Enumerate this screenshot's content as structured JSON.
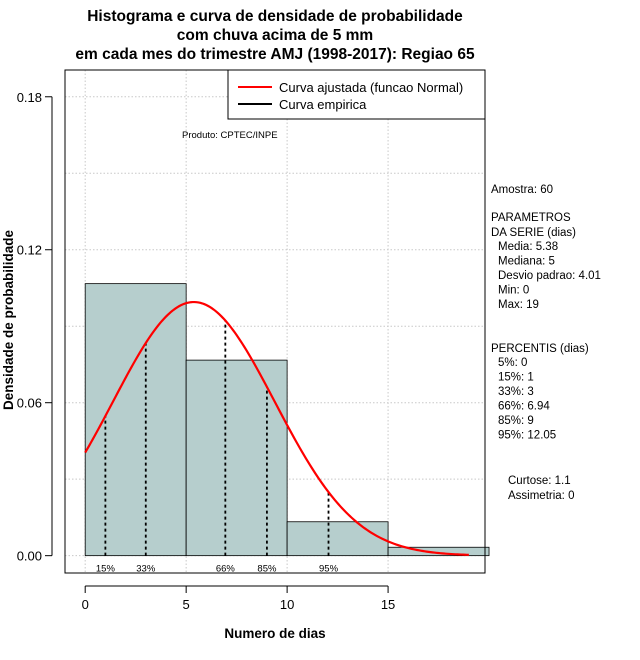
{
  "chart_data": {
    "type": "bar",
    "title": [
      "Histograma e curva de densidade de probabilidade",
      "com chuva acima de 5 mm",
      "em cada mes do trimestre AMJ (1998-2017): Regiao 65"
    ],
    "xlabel": "Numero de dias",
    "ylabel": "Densidade de probabilidade",
    "xlim": [
      -1,
      19.8
    ],
    "ylim": [
      -0.0068,
      0.1905
    ],
    "xticks": [
      "0",
      "5",
      "10",
      "15"
    ],
    "xtick_values": [
      0,
      5,
      10,
      15
    ],
    "yticks": [
      "0.00",
      "0.06",
      "0.12",
      "0.18"
    ],
    "ytick_values": [
      0.0,
      0.06,
      0.12,
      0.18
    ],
    "grid": true,
    "bins": [
      {
        "start": 0,
        "end": 5,
        "density": 0.1067
      },
      {
        "start": 5,
        "end": 10,
        "density": 0.0767
      },
      {
        "start": 10,
        "end": 15,
        "density": 0.0133
      },
      {
        "start": 15,
        "end": 20,
        "density": 0.0033
      }
    ],
    "normal_fit": {
      "mean": 5.38,
      "sd": 4.01,
      "x_range": [
        0,
        19
      ]
    },
    "percentiles": [
      {
        "label": "15%",
        "x": 1
      },
      {
        "label": "33%",
        "x": 3
      },
      {
        "label": "66%",
        "x": 6.94
      },
      {
        "label": "85%",
        "x": 9
      },
      {
        "label": "95%",
        "x": 12.05
      }
    ],
    "legend": {
      "position": "top-right",
      "entries": [
        {
          "label": "Curva ajustada (funcao Normal)",
          "color": "#ff0000"
        },
        {
          "label": "Curva empirica",
          "color": "#000000"
        }
      ]
    },
    "product_label": "Produto: CPTEC/INPE",
    "stats": {
      "amostra": "Amostra: 60",
      "param_header": [
        " PARAMETROS",
        "DA SERIE (dias)"
      ],
      "params": [
        "Media: 5.38",
        "Mediana: 5",
        "Desvio padrao: 4.01",
        "Min: 0",
        "Max: 19"
      ],
      "percentis_header": "PERCENTIS (dias)",
      "percentis": [
        "5%: 0",
        "15%: 1",
        "33%: 3",
        "66%: 6.94",
        "85%: 9",
        "95%: 12.05"
      ],
      "shape": [
        "Curtose: 1.1",
        "Assimetria: 0"
      ]
    },
    "colors": {
      "bar_fill": "#b6cecd",
      "curve": "#ff0000",
      "grid": "#c8c8c8",
      "axis": "#000000"
    }
  }
}
